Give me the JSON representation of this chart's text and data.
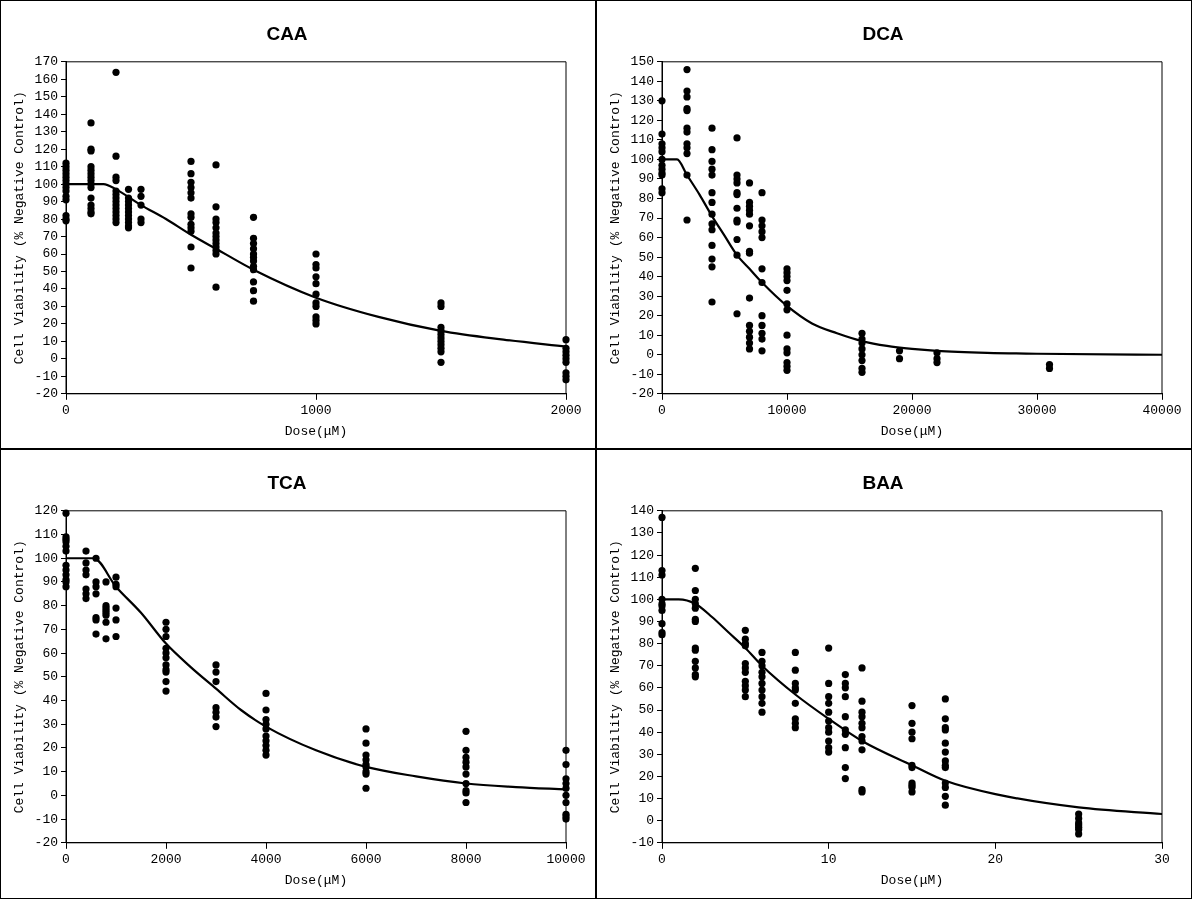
{
  "chart_data": [
    {
      "type": "scatter",
      "title": "CAA",
      "xlabel": "Dose(μM)",
      "ylabel": "Cell Viability (% Negative Control)",
      "xlim": [
        0,
        2000
      ],
      "xticks": [
        0,
        1000,
        2000
      ],
      "ylim": [
        -20,
        170
      ],
      "yticks": [
        -20,
        -10,
        0,
        10,
        20,
        30,
        40,
        50,
        60,
        70,
        80,
        90,
        100,
        110,
        120,
        130,
        140,
        150,
        160,
        170
      ],
      "grid": false,
      "legend": false,
      "marker": "circle",
      "line_style": "solid",
      "series": [
        {
          "color": "#000000",
          "x": [
            0,
            0,
            0,
            0,
            0,
            0,
            0,
            0,
            0,
            0,
            0,
            0,
            0,
            0,
            100,
            100,
            100,
            100,
            100,
            100,
            100,
            100,
            100,
            100,
            100,
            100,
            100,
            100,
            100,
            200,
            200,
            200,
            200,
            200,
            200,
            200,
            200,
            200,
            200,
            200,
            200,
            200,
            200,
            250,
            250,
            250,
            250,
            250,
            250,
            250,
            250,
            250,
            250,
            250,
            300,
            300,
            300,
            300,
            300,
            500,
            500,
            500,
            500,
            500,
            500,
            500,
            500,
            500,
            500,
            500,
            500,
            500,
            600,
            600,
            600,
            600,
            600,
            600,
            600,
            600,
            600,
            600,
            600,
            600,
            600,
            750,
            750,
            750,
            750,
            750,
            750,
            750,
            750,
            750,
            750,
            750,
            750,
            1000,
            1000,
            1000,
            1000,
            1000,
            1000,
            1000,
            1000,
            1000,
            1000,
            1000,
            1500,
            1500,
            1500,
            1500,
            1500,
            1500,
            1500,
            1500,
            1500,
            1500,
            1500,
            2000,
            2000,
            2000,
            2000,
            2000,
            2000,
            2000,
            2000,
            2000
          ],
          "values": [
            112,
            110,
            108,
            106,
            104,
            102,
            100,
            98,
            96,
            93,
            91,
            82,
            80,
            79,
            135,
            120,
            119,
            110,
            108,
            106,
            104,
            102,
            100,
            98,
            92,
            88,
            86,
            84,
            83,
            164,
            116,
            104,
            102,
            96,
            94,
            92,
            90,
            88,
            86,
            84,
            82,
            80,
            78,
            97,
            92,
            90,
            88,
            86,
            84,
            82,
            80,
            78,
            76,
            75,
            97,
            93,
            88,
            80,
            78,
            113,
            106,
            101,
            98,
            95,
            92,
            83,
            81,
            77,
            75,
            73,
            64,
            52,
            111,
            87,
            80,
            78,
            75,
            72,
            70,
            68,
            66,
            64,
            62,
            60,
            41,
            81,
            69,
            66,
            63,
            60,
            58,
            56,
            53,
            51,
            44,
            39,
            33,
            60,
            54,
            52,
            47,
            43,
            37,
            32,
            30,
            24,
            22,
            20,
            32,
            30,
            18,
            16,
            14,
            12,
            10,
            8,
            6,
            4,
            -2,
            11,
            6,
            4,
            2,
            0,
            -2,
            -8,
            -10,
            -12
          ]
        },
        {
          "type": "line",
          "marker": "none",
          "color": "#000000",
          "x": [
            0,
            150,
            200,
            300,
            400,
            500,
            600,
            750,
            1000,
            1250,
            1500,
            1750,
            2000
          ],
          "values": [
            100,
            100,
            97,
            88,
            80,
            71,
            63,
            51,
            35,
            24,
            16,
            11,
            7
          ]
        }
      ]
    },
    {
      "type": "scatter",
      "title": "DCA",
      "xlabel": "Dose(μM)",
      "ylabel": "Cell Viability (% Negative Control)",
      "xlim": [
        0,
        40000
      ],
      "xticks": [
        0,
        10000,
        20000,
        30000,
        40000
      ],
      "ylim": [
        -20,
        150
      ],
      "yticks": [
        -20,
        -10,
        0,
        10,
        20,
        30,
        40,
        50,
        60,
        70,
        80,
        90,
        100,
        110,
        120,
        130,
        140,
        150
      ],
      "grid": false,
      "legend": false,
      "marker": "circle",
      "line_style": "solid",
      "series": [
        {
          "color": "#000000",
          "x": [
            0,
            0,
            0,
            0,
            0,
            0,
            0,
            0,
            0,
            0,
            0,
            0,
            2000,
            2000,
            2000,
            2000,
            2000,
            2000,
            2000,
            2000,
            2000,
            2000,
            2000,
            2000,
            4000,
            4000,
            4000,
            4000,
            4000,
            4000,
            4000,
            4000,
            4000,
            4000,
            4000,
            4000,
            4000,
            4000,
            6000,
            6000,
            6000,
            6000,
            6000,
            6000,
            6000,
            6000,
            6000,
            6000,
            6000,
            6000,
            7000,
            7000,
            7000,
            7000,
            7000,
            7000,
            7000,
            7000,
            7000,
            7000,
            7000,
            7000,
            7000,
            7000,
            8000,
            8000,
            8000,
            8000,
            8000,
            8000,
            8000,
            8000,
            8000,
            8000,
            8000,
            8000,
            10000,
            10000,
            10000,
            10000,
            10000,
            10000,
            10000,
            10000,
            10000,
            10000,
            10000,
            10000,
            10000,
            16000,
            16000,
            16000,
            16000,
            16000,
            16000,
            16000,
            16000,
            19000,
            19000,
            22000,
            22000,
            22000,
            31000,
            31000
          ],
          "values": [
            130,
            113,
            108,
            106,
            104,
            100,
            97,
            95,
            93,
            92,
            85,
            83,
            146,
            135,
            132,
            126,
            125,
            116,
            114,
            108,
            106,
            103,
            92,
            69,
            116,
            105,
            99,
            95,
            92,
            83,
            78,
            72,
            67,
            64,
            56,
            49,
            45,
            27,
            111,
            92,
            90,
            88,
            83,
            82,
            75,
            69,
            68,
            59,
            51,
            21,
            88,
            78,
            76,
            74,
            72,
            66,
            53,
            52,
            29,
            15,
            12,
            9,
            6,
            3,
            83,
            69,
            66,
            63,
            60,
            44,
            37,
            20,
            15,
            11,
            8,
            2,
            44,
            42,
            40,
            38,
            33,
            26,
            23,
            10,
            3,
            1,
            -4,
            -6,
            -8,
            11,
            8,
            6,
            3,
            0,
            -3,
            -7,
            -9,
            2,
            -2,
            1,
            -2,
            -4,
            -5,
            -7
          ]
        },
        {
          "type": "line",
          "marker": "none",
          "color": "#000000",
          "x": [
            0,
            1200,
            2000,
            3000,
            4000,
            5000,
            6000,
            7000,
            8000,
            10000,
            12000,
            14000,
            16000,
            18000,
            20000,
            22000,
            26000,
            30000,
            40000
          ],
          "values": [
            100,
            100,
            92,
            82,
            71,
            61,
            51,
            44,
            37,
            25,
            16,
            11,
            7,
            4.5,
            3,
            2,
            1,
            0.5,
            0
          ]
        }
      ]
    },
    {
      "type": "scatter",
      "title": "TCA",
      "xlabel": "Dose(μM)",
      "ylabel": "Cell Viability (% Negative Control)",
      "xlim": [
        0,
        10000
      ],
      "xticks": [
        0,
        2000,
        4000,
        6000,
        8000,
        10000
      ],
      "ylim": [
        -20,
        120
      ],
      "yticks": [
        -20,
        -10,
        0,
        10,
        20,
        30,
        40,
        50,
        60,
        70,
        80,
        90,
        100,
        110,
        120
      ],
      "grid": false,
      "legend": false,
      "marker": "circle",
      "line_style": "solid",
      "series": [
        {
          "color": "#000000",
          "x": [
            0,
            0,
            0,
            0,
            0,
            0,
            0,
            0,
            0,
            0,
            0,
            0,
            400,
            400,
            400,
            400,
            400,
            400,
            400,
            600,
            600,
            600,
            600,
            600,
            600,
            600,
            800,
            800,
            800,
            800,
            800,
            800,
            800,
            800,
            1000,
            1000,
            1000,
            1000,
            1000,
            1000,
            2000,
            2000,
            2000,
            2000,
            2000,
            2000,
            2000,
            2000,
            2000,
            2000,
            2000,
            3000,
            3000,
            3000,
            3000,
            3000,
            3000,
            3000,
            4000,
            4000,
            4000,
            4000,
            4000,
            4000,
            4000,
            4000,
            4000,
            4000,
            6000,
            6000,
            6000,
            6000,
            6000,
            6000,
            6000,
            6000,
            6000,
            8000,
            8000,
            8000,
            8000,
            8000,
            8000,
            8000,
            8000,
            8000,
            8000,
            10000,
            10000,
            10000,
            10000,
            10000,
            10000,
            10000,
            10000,
            10000,
            10000
          ],
          "values": [
            119,
            109,
            108,
            107,
            105,
            103,
            97,
            95,
            93,
            91,
            90,
            88,
            103,
            98,
            95,
            93,
            87,
            85,
            83,
            100,
            90,
            88,
            85,
            75,
            74,
            68,
            90,
            80,
            79,
            78,
            77,
            76,
            73,
            66,
            92,
            89,
            88,
            79,
            74,
            67,
            73,
            70,
            67,
            62,
            60,
            58,
            55,
            53,
            52,
            48,
            44,
            55,
            52,
            48,
            37,
            35,
            33,
            29,
            43,
            36,
            32,
            30,
            28,
            25,
            23,
            21,
            19,
            17,
            28,
            22,
            17,
            15,
            13,
            12,
            10,
            9,
            3,
            27,
            19,
            16,
            14,
            12,
            9,
            5,
            2,
            1,
            -3,
            19,
            13,
            7,
            5,
            3,
            0,
            -3,
            -8,
            -9,
            -10
          ]
        },
        {
          "type": "line",
          "marker": "none",
          "color": "#000000",
          "x": [
            0,
            550,
            1000,
            1500,
            2000,
            2500,
            3000,
            3500,
            4000,
            5000,
            6000,
            7000,
            8000,
            9000,
            10000
          ],
          "values": [
            100,
            100,
            88,
            77,
            64,
            54,
            45,
            36,
            29,
            19,
            12,
            8,
            5,
            3.5,
            2.5
          ]
        }
      ]
    },
    {
      "type": "scatter",
      "title": "BAA",
      "xlabel": "Dose(μM)",
      "ylabel": "Cell Viability (% Negative Control)",
      "xlim": [
        0,
        30
      ],
      "xticks": [
        0,
        10,
        20,
        30
      ],
      "ylim": [
        -10,
        140
      ],
      "yticks": [
        -10,
        0,
        10,
        20,
        30,
        40,
        50,
        60,
        70,
        80,
        90,
        100,
        110,
        120,
        130,
        140
      ],
      "grid": false,
      "legend": false,
      "marker": "circle",
      "line_style": "solid",
      "series": [
        {
          "color": "#000000",
          "x": [
            0,
            0,
            0,
            0,
            0,
            0,
            0,
            0,
            0,
            0,
            2,
            2,
            2,
            2,
            2,
            2,
            2,
            2,
            2,
            2,
            2,
            2,
            2,
            5,
            5,
            5,
            5,
            5,
            5,
            5,
            5,
            5,
            5,
            5,
            6,
            6,
            6,
            6,
            6,
            6,
            6,
            6,
            6,
            6,
            8,
            8,
            8,
            8,
            8,
            8,
            8,
            8,
            8,
            10,
            10,
            10,
            10,
            10,
            10,
            10,
            10,
            10,
            10,
            10,
            11,
            11,
            11,
            11,
            11,
            11,
            11,
            11,
            11,
            11,
            12,
            12,
            12,
            12,
            12,
            12,
            12,
            12,
            12,
            12,
            12,
            15,
            15,
            15,
            15,
            15,
            15,
            15,
            15,
            15,
            15,
            17,
            17,
            17,
            17,
            17,
            17,
            17,
            17,
            17,
            17,
            17,
            17,
            17,
            25,
            25,
            25,
            25,
            25,
            25,
            25
          ],
          "values": [
            137,
            113,
            111,
            100,
            98,
            97,
            95,
            89,
            85,
            84,
            114,
            104,
            100,
            98,
            96,
            91,
            90,
            78,
            77,
            72,
            69,
            66,
            65,
            86,
            82,
            80,
            79,
            71,
            69,
            67,
            63,
            61,
            59,
            56,
            76,
            72,
            70,
            67,
            65,
            62,
            59,
            56,
            53,
            49,
            76,
            68,
            62,
            60,
            59,
            53,
            46,
            44,
            42,
            78,
            62,
            56,
            53,
            49,
            45,
            42,
            40,
            36,
            33,
            31,
            66,
            62,
            60,
            56,
            47,
            41,
            39,
            33,
            24,
            19,
            69,
            54,
            49,
            47,
            44,
            42,
            38,
            36,
            32,
            14,
            13,
            52,
            44,
            40,
            37,
            25,
            24,
            17,
            16,
            15,
            13,
            55,
            46,
            42,
            41,
            35,
            31,
            27,
            25,
            24,
            17,
            15,
            11,
            7,
            3,
            1,
            -1,
            -2,
            -3,
            -4,
            -6
          ]
        },
        {
          "type": "line",
          "marker": "none",
          "color": "#000000",
          "x": [
            0,
            1,
            2,
            3,
            4,
            5,
            6,
            8,
            10,
            12,
            15,
            17,
            20,
            25,
            30
          ],
          "values": [
            100,
            100,
            98,
            92,
            85,
            78,
            70,
            57,
            46,
            36,
            25,
            18,
            12,
            6,
            3
          ]
        }
      ]
    }
  ]
}
